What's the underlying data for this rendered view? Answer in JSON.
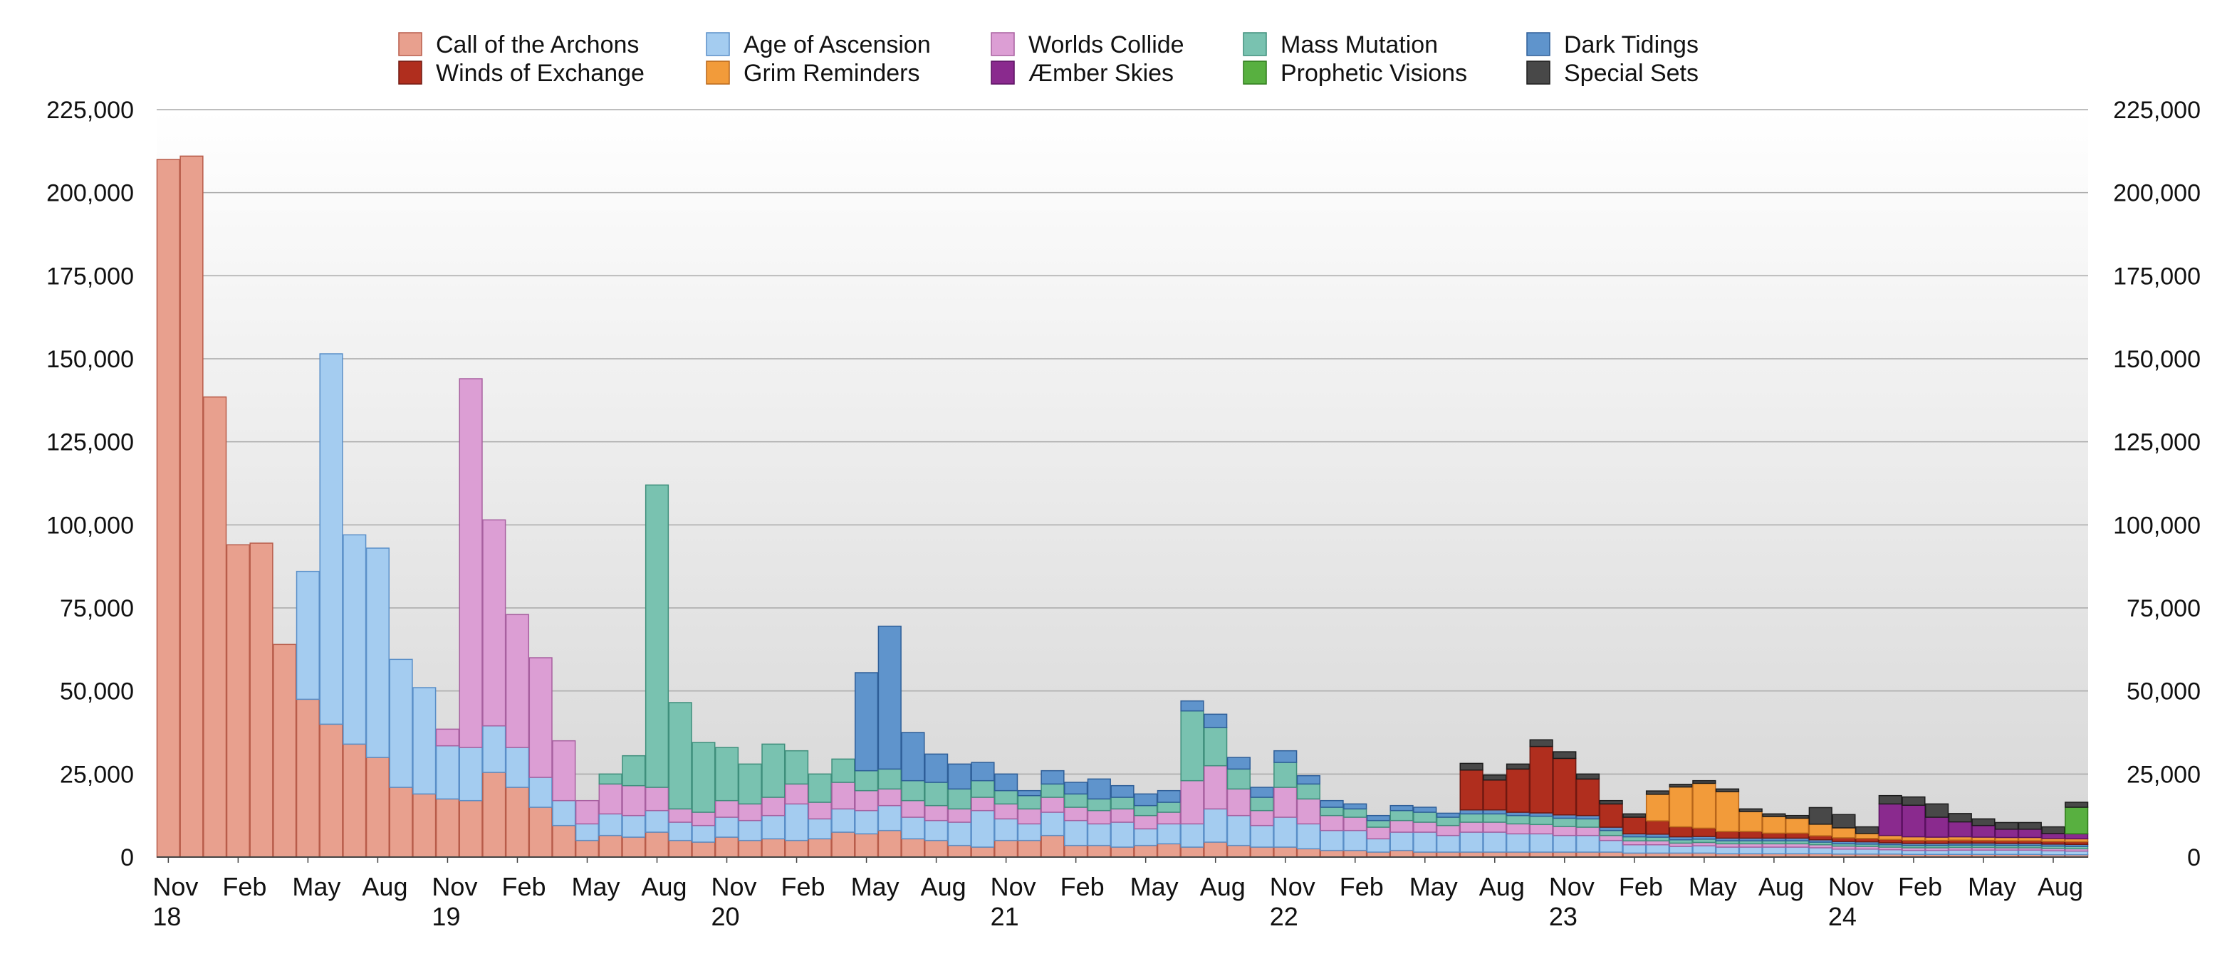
{
  "chart_data": {
    "type": "bar",
    "stacked": true,
    "title": "",
    "xlabel": "",
    "ylabel": "",
    "ylim": [
      0,
      225000
    ],
    "grid": true,
    "legend_position": "top",
    "y_ticks": [
      "0",
      "25,000",
      "50,000",
      "75,000",
      "100,000",
      "125,000",
      "150,000",
      "175,000",
      "200,000",
      "225,000"
    ],
    "x_tick_labels": [
      {
        "index": 0,
        "label": "Nov",
        "sub": "18"
      },
      {
        "index": 3,
        "label": "Feb",
        "sub": ""
      },
      {
        "index": 6,
        "label": "May",
        "sub": ""
      },
      {
        "index": 9,
        "label": "Aug",
        "sub": ""
      },
      {
        "index": 12,
        "label": "Nov",
        "sub": "19"
      },
      {
        "index": 15,
        "label": "Feb",
        "sub": ""
      },
      {
        "index": 18,
        "label": "May",
        "sub": ""
      },
      {
        "index": 21,
        "label": "Aug",
        "sub": ""
      },
      {
        "index": 24,
        "label": "Nov",
        "sub": "20"
      },
      {
        "index": 27,
        "label": "Feb",
        "sub": ""
      },
      {
        "index": 30,
        "label": "May",
        "sub": ""
      },
      {
        "index": 33,
        "label": "Aug",
        "sub": ""
      },
      {
        "index": 36,
        "label": "Nov",
        "sub": "21"
      },
      {
        "index": 39,
        "label": "Feb",
        "sub": ""
      },
      {
        "index": 42,
        "label": "May",
        "sub": ""
      },
      {
        "index": 45,
        "label": "Aug",
        "sub": ""
      },
      {
        "index": 48,
        "label": "Nov",
        "sub": "22"
      },
      {
        "index": 51,
        "label": "Feb",
        "sub": ""
      },
      {
        "index": 54,
        "label": "May",
        "sub": ""
      },
      {
        "index": 57,
        "label": "Aug",
        "sub": ""
      },
      {
        "index": 60,
        "label": "Nov",
        "sub": "23"
      },
      {
        "index": 63,
        "label": "Feb",
        "sub": ""
      },
      {
        "index": 66,
        "label": "May",
        "sub": ""
      },
      {
        "index": 69,
        "label": "Aug",
        "sub": ""
      },
      {
        "index": 72,
        "label": "Nov",
        "sub": "24"
      },
      {
        "index": 75,
        "label": "Feb",
        "sub": ""
      },
      {
        "index": 78,
        "label": "May",
        "sub": ""
      },
      {
        "index": 81,
        "label": "Aug",
        "sub": ""
      }
    ],
    "categories": [
      "2018-11",
      "2018-12",
      "2019-01",
      "2019-02",
      "2019-03",
      "2019-04",
      "2019-05",
      "2019-06",
      "2019-07",
      "2019-08",
      "2019-09",
      "2019-10",
      "2019-11",
      "2019-12",
      "2020-01",
      "2020-02",
      "2020-03",
      "2020-04",
      "2020-05",
      "2020-06",
      "2020-07",
      "2020-08",
      "2020-09",
      "2020-10",
      "2020-11",
      "2020-12",
      "2021-01",
      "2021-02",
      "2021-03",
      "2021-04",
      "2021-05",
      "2021-06",
      "2021-07",
      "2021-08",
      "2021-09",
      "2021-10",
      "2021-11",
      "2021-12",
      "2022-01",
      "2022-02",
      "2022-03",
      "2022-04",
      "2022-05",
      "2022-06",
      "2022-07",
      "2022-08",
      "2022-09",
      "2022-10",
      "2022-11",
      "2022-12",
      "2023-01",
      "2023-02",
      "2023-03",
      "2023-04",
      "2023-05",
      "2023-06",
      "2023-07",
      "2023-08",
      "2023-09",
      "2023-10",
      "2023-11",
      "2023-12",
      "2024-01",
      "2024-02",
      "2024-03",
      "2024-04",
      "2024-05",
      "2024-06",
      "2024-07",
      "2024-08",
      "2024-09",
      "2024-10",
      "2024-11",
      "2024-12",
      "2025-01",
      "2025-02",
      "2025-03",
      "2025-04",
      "2025-05",
      "2025-06",
      "2025-07",
      "2025-08",
      "2025-09"
    ],
    "series": [
      {
        "name": "Call of the Archons",
        "color": "#e8a08e",
        "stroke": "#b85c4a",
        "values": [
          210000,
          211000,
          138500,
          94000,
          94500,
          64000,
          47500,
          40000,
          34000,
          30000,
          21000,
          19000,
          17500,
          17000,
          25500,
          21000,
          15000,
          9500,
          5000,
          6500,
          6000,
          7500,
          5000,
          4500,
          6000,
          5000,
          5500,
          5000,
          5500,
          7500,
          7000,
          8000,
          5500,
          5000,
          3500,
          3000,
          5000,
          5000,
          6500,
          3500,
          3500,
          3000,
          3500,
          4000,
          3000,
          4500,
          3500,
          3000,
          3000,
          2500,
          2000,
          2000,
          1500,
          2000,
          1500,
          1500,
          1500,
          1500,
          1500,
          1500,
          1500,
          1500,
          1500,
          1200,
          1200,
          1200,
          1200,
          1000,
          1000,
          1000,
          1000,
          1000,
          900,
          900,
          900,
          800,
          800,
          800,
          800,
          800,
          800,
          700,
          700
        ]
      },
      {
        "name": "Age of Ascension",
        "color": "#a4ccf0",
        "stroke": "#5a8fc8",
        "values": [
          0,
          0,
          0,
          0,
          0,
          0,
          38500,
          111500,
          63000,
          63000,
          38500,
          32000,
          16000,
          16000,
          14000,
          12000,
          9000,
          7500,
          5000,
          6500,
          6500,
          6500,
          5500,
          5000,
          6000,
          6000,
          7000,
          11000,
          6000,
          7000,
          7000,
          7500,
          6500,
          6000,
          7000,
          11000,
          6500,
          5000,
          7000,
          7500,
          6500,
          7500,
          5000,
          6000,
          7000,
          10000,
          9000,
          6500,
          9000,
          7500,
          6000,
          6000,
          4000,
          5500,
          6000,
          5000,
          6000,
          6000,
          5500,
          5500,
          5000,
          5000,
          3500,
          2500,
          2500,
          2000,
          2200,
          2000,
          2000,
          2000,
          2000,
          1800,
          1500,
          1500,
          1300,
          1200,
          1200,
          1300,
          1300,
          1300,
          1300,
          1200,
          1100
        ]
      },
      {
        "name": "Worlds Collide",
        "color": "#dc9ed4",
        "stroke": "#a860a0",
        "values": [
          0,
          0,
          0,
          0,
          0,
          0,
          0,
          0,
          0,
          0,
          0,
          0,
          5000,
          111000,
          62000,
          40000,
          36000,
          18000,
          7000,
          9000,
          9000,
          7000,
          4000,
          4000,
          5000,
          5000,
          5500,
          6000,
          5000,
          8000,
          6000,
          5000,
          5000,
          4500,
          4000,
          4000,
          4500,
          4500,
          4500,
          4000,
          4000,
          4000,
          4000,
          3500,
          13000,
          13000,
          8000,
          4500,
          9000,
          7500,
          4500,
          4000,
          3500,
          3500,
          3000,
          3000,
          3000,
          3000,
          3000,
          2800,
          2700,
          2500,
          1500,
          1200,
          1200,
          1000,
          1000,
          1000,
          1000,
          1000,
          1000,
          900,
          900,
          800,
          800,
          800,
          800,
          800,
          800,
          700,
          700,
          700,
          700
        ]
      },
      {
        "name": "Mass Mutation",
        "color": "#79c2b0",
        "stroke": "#3f8f7c",
        "values": [
          0,
          0,
          0,
          0,
          0,
          0,
          0,
          0,
          0,
          0,
          0,
          0,
          0,
          0,
          0,
          0,
          0,
          0,
          0,
          3000,
          9000,
          91000,
          32000,
          21000,
          16000,
          12000,
          16000,
          10000,
          8500,
          7000,
          6000,
          6000,
          6000,
          7000,
          6000,
          5000,
          4000,
          4000,
          4000,
          4000,
          3500,
          3500,
          3000,
          3000,
          21000,
          11500,
          6000,
          4000,
          7500,
          4500,
          2500,
          2500,
          2000,
          3000,
          3000,
          2500,
          2500,
          2500,
          2500,
          2500,
          2500,
          2500,
          1500,
          1200,
          1100,
          1000,
          1000,
          900,
          900,
          900,
          900,
          800,
          700,
          700,
          700,
          700,
          700,
          700,
          700,
          700,
          700,
          700,
          700
        ]
      },
      {
        "name": "Dark Tidings",
        "color": "#5f94cc",
        "stroke": "#2e5e98",
        "values": [
          0,
          0,
          0,
          0,
          0,
          0,
          0,
          0,
          0,
          0,
          0,
          0,
          0,
          0,
          0,
          0,
          0,
          0,
          0,
          0,
          0,
          0,
          0,
          0,
          0,
          0,
          0,
          0,
          0,
          0,
          29500,
          43000,
          14500,
          8500,
          7500,
          5500,
          5000,
          1500,
          4000,
          3500,
          6000,
          3500,
          3500,
          3500,
          3000,
          4000,
          3500,
          3000,
          3500,
          2500,
          2000,
          1500,
          1500,
          1500,
          1500,
          1200,
          1200,
          1200,
          1000,
          1000,
          1000,
          1000,
          1000,
          900,
          900,
          900,
          800,
          800,
          800,
          800,
          800,
          700,
          700,
          700,
          600,
          600,
          600,
          600,
          600,
          600,
          600,
          600,
          600
        ]
      },
      {
        "name": "Winds of Exchange",
        "color": "#b02e1e",
        "stroke": "#701810",
        "values": [
          0,
          0,
          0,
          0,
          0,
          0,
          0,
          0,
          0,
          0,
          0,
          0,
          0,
          0,
          0,
          0,
          0,
          0,
          0,
          0,
          0,
          0,
          0,
          0,
          0,
          0,
          0,
          0,
          0,
          0,
          0,
          0,
          0,
          0,
          0,
          0,
          0,
          0,
          0,
          0,
          0,
          0,
          0,
          0,
          0,
          0,
          0,
          0,
          0,
          0,
          0,
          0,
          0,
          0,
          0,
          0,
          12000,
          9000,
          13000,
          20000,
          17000,
          11000,
          7000,
          5000,
          4000,
          3000,
          2500,
          2000,
          2000,
          1500,
          1500,
          1200,
          1100,
          1000,
          1000,
          900,
          900,
          900,
          800,
          800,
          800,
          800,
          800
        ]
      },
      {
        "name": "Grim Reminders",
        "color": "#f29b3a",
        "stroke": "#b8661a",
        "values": [
          0,
          0,
          0,
          0,
          0,
          0,
          0,
          0,
          0,
          0,
          0,
          0,
          0,
          0,
          0,
          0,
          0,
          0,
          0,
          0,
          0,
          0,
          0,
          0,
          0,
          0,
          0,
          0,
          0,
          0,
          0,
          0,
          0,
          0,
          0,
          0,
          0,
          0,
          0,
          0,
          0,
          0,
          0,
          0,
          0,
          0,
          0,
          0,
          0,
          0,
          0,
          0,
          0,
          0,
          0,
          0,
          0,
          0,
          0,
          0,
          0,
          0,
          0,
          0,
          8000,
          12000,
          13500,
          12000,
          6000,
          5000,
          4500,
          3500,
          3000,
          1500,
          1200,
          1100,
          1000,
          1000,
          1000,
          1000,
          1000,
          900,
          900
        ]
      },
      {
        "name": "Æmber Skies",
        "color": "#8a2a8e",
        "stroke": "#5a1060",
        "values": [
          0,
          0,
          0,
          0,
          0,
          0,
          0,
          0,
          0,
          0,
          0,
          0,
          0,
          0,
          0,
          0,
          0,
          0,
          0,
          0,
          0,
          0,
          0,
          0,
          0,
          0,
          0,
          0,
          0,
          0,
          0,
          0,
          0,
          0,
          0,
          0,
          0,
          0,
          0,
          0,
          0,
          0,
          0,
          0,
          0,
          0,
          0,
          0,
          0,
          0,
          0,
          0,
          0,
          0,
          0,
          0,
          0,
          0,
          0,
          0,
          0,
          0,
          0,
          0,
          0,
          0,
          0,
          0,
          0,
          0,
          0,
          0,
          0,
          0,
          9500,
          9500,
          6000,
          4500,
          3500,
          2500,
          2500,
          1500,
          1500
        ]
      },
      {
        "name": "Prophetic Visions",
        "color": "#58b040",
        "stroke": "#2e7a1a",
        "values": [
          0,
          0,
          0,
          0,
          0,
          0,
          0,
          0,
          0,
          0,
          0,
          0,
          0,
          0,
          0,
          0,
          0,
          0,
          0,
          0,
          0,
          0,
          0,
          0,
          0,
          0,
          0,
          0,
          0,
          0,
          0,
          0,
          0,
          0,
          0,
          0,
          0,
          0,
          0,
          0,
          0,
          0,
          0,
          0,
          0,
          0,
          0,
          0,
          0,
          0,
          0,
          0,
          0,
          0,
          0,
          0,
          0,
          0,
          0,
          0,
          0,
          0,
          0,
          0,
          0,
          0,
          0,
          0,
          0,
          0,
          0,
          0,
          0,
          0,
          0,
          0,
          0,
          0,
          0,
          0,
          0,
          0,
          8000
        ]
      },
      {
        "name": "Special Sets",
        "color": "#484848",
        "stroke": "#1c1c1c",
        "values": [
          0,
          0,
          0,
          0,
          0,
          0,
          0,
          0,
          0,
          0,
          0,
          0,
          0,
          0,
          0,
          0,
          0,
          0,
          0,
          0,
          0,
          0,
          0,
          0,
          0,
          0,
          0,
          0,
          0,
          0,
          0,
          0,
          0,
          0,
          0,
          0,
          0,
          0,
          0,
          0,
          0,
          0,
          0,
          0,
          0,
          0,
          0,
          0,
          0,
          0,
          0,
          0,
          0,
          0,
          0,
          0,
          2000,
          1500,
          1500,
          2000,
          2000,
          1500,
          1000,
          1000,
          1000,
          800,
          800,
          800,
          800,
          800,
          800,
          5000,
          4000,
          2000,
          2500,
          2500,
          4000,
          2500,
          2000,
          2000,
          2000,
          2000,
          1500
        ]
      }
    ]
  }
}
